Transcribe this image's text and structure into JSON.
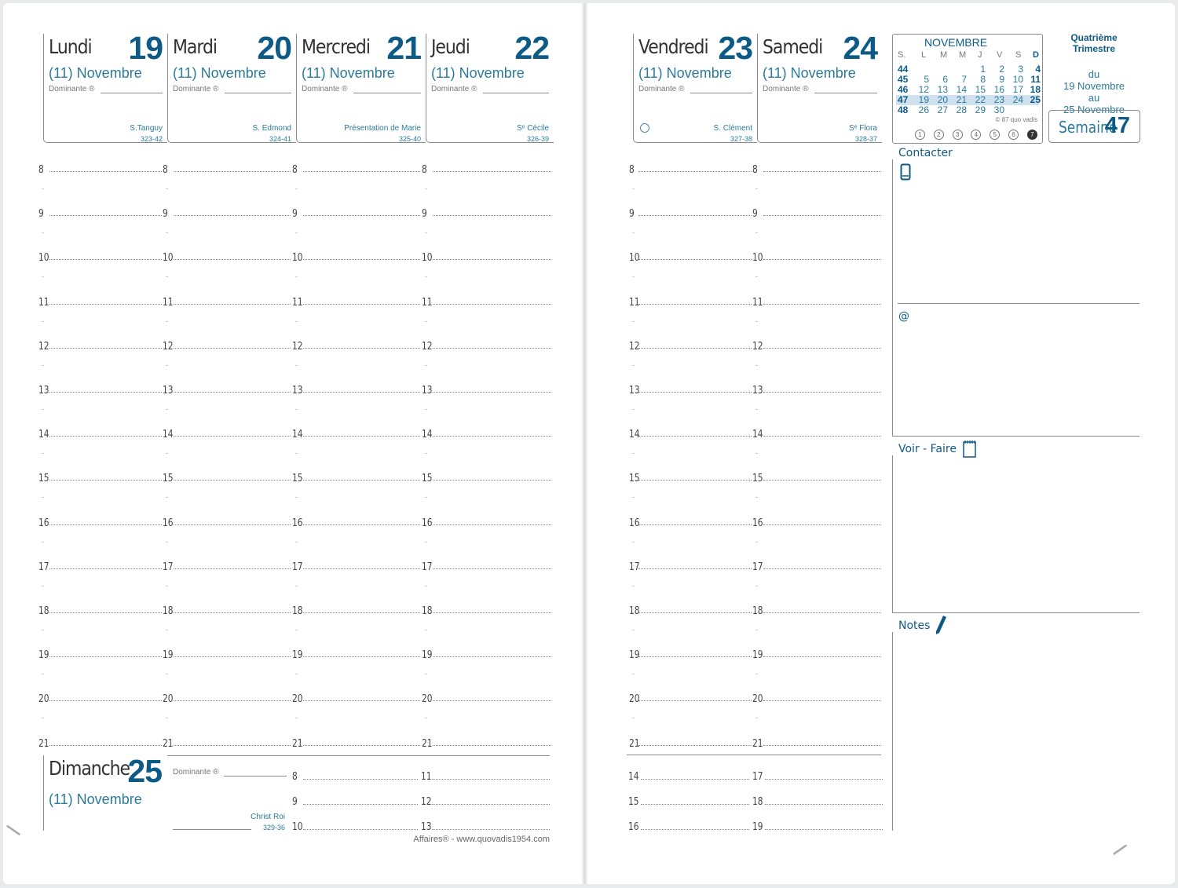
{
  "days_left": [
    {
      "name": "Lundi",
      "num": "19",
      "month": "(11) Novembre",
      "dominante": "Dominante ®",
      "saint": "S.Tanguy",
      "code": "323-42"
    },
    {
      "name": "Mardi",
      "num": "20",
      "month": "(11) Novembre",
      "dominante": "Dominante ®",
      "saint": "S. Edmond",
      "code": "324-41"
    },
    {
      "name": "Mercredi",
      "num": "21",
      "month": "(11) Novembre",
      "dominante": "Dominante ®",
      "saint": "Présentation de Marie",
      "code": "325-40"
    },
    {
      "name": "Jeudi",
      "num": "22",
      "month": "(11) Novembre",
      "dominante": "Dominante ®",
      "saint": "Sᵉ Cécile",
      "code": "326-39"
    }
  ],
  "days_right": [
    {
      "name": "Vendredi",
      "num": "23",
      "month": "(11) Novembre",
      "dominante": "Dominante ®",
      "saint": "S. Clément",
      "code": "327-38"
    },
    {
      "name": "Samedi",
      "num": "24",
      "month": "(11) Novembre",
      "dominante": "Dominante ®",
      "saint": "Sᵉ Flora",
      "code": "328-37"
    }
  ],
  "hours": [
    "8",
    "9",
    "10",
    "11",
    "12",
    "13",
    "14",
    "15",
    "16",
    "17",
    "18",
    "19",
    "20",
    "21"
  ],
  "sunday": {
    "name": "Dimanche",
    "num": "25",
    "month": "(11) Novembre",
    "dominante": "Dominante ®",
    "saint": "Christ Roi",
    "code": "329-36",
    "slots": [
      [
        "8",
        "11"
      ],
      [
        "9",
        "12"
      ],
      [
        "10",
        "13"
      ]
    ]
  },
  "saturday_extra": {
    "slots": [
      [
        "14",
        "17"
      ],
      [
        "15",
        "18"
      ],
      [
        "16",
        "19"
      ]
    ]
  },
  "calendar": {
    "title": "NOVEMBRE",
    "headers": [
      "S.",
      "L",
      "M",
      "M",
      "J",
      "V",
      "S",
      "D"
    ],
    "weeks": [
      {
        "wk": "44",
        "days": [
          "",
          "",
          "",
          "1",
          "2",
          "3",
          "4"
        ]
      },
      {
        "wk": "45",
        "days": [
          "5",
          "6",
          "7",
          "8",
          "9",
          "10",
          "11"
        ]
      },
      {
        "wk": "46",
        "days": [
          "12",
          "13",
          "14",
          "15",
          "16",
          "17",
          "18"
        ]
      },
      {
        "wk": "47",
        "days": [
          "19",
          "20",
          "21",
          "22",
          "23",
          "24",
          "25"
        ]
      },
      {
        "wk": "48",
        "days": [
          "26",
          "27",
          "28",
          "29",
          "30",
          "",
          ""
        ]
      }
    ],
    "copyright": "© 87 quo vadis",
    "circles": [
      "1",
      "2",
      "3",
      "4",
      "5",
      "6",
      "7"
    ],
    "highlight_color": "#cfe0ef"
  },
  "trimestre": {
    "title": "Quatrième Trimestre",
    "du": "du",
    "from": "19 Novembre",
    "au": "au",
    "to": "25 Novembre"
  },
  "semaine": {
    "label": "Semaine",
    "num": "47"
  },
  "sections": {
    "contacter": "Contacter",
    "email": "@",
    "voir_faire": "Voir - Faire",
    "notes": "Notes"
  },
  "icons": {
    "phone": "phone-icon",
    "notepad": "notepad-icon",
    "pencil": "pencil-icon"
  },
  "footer": "Affaires® - www.quovadis1954.com",
  "colors": {
    "accent": "#0e5a87",
    "text_blue": "#2b7a9c"
  }
}
